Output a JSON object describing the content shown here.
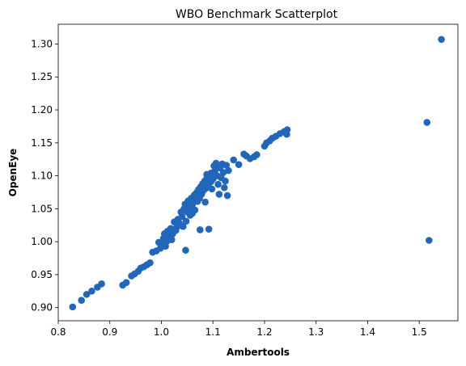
{
  "chart_data": {
    "type": "scatter",
    "title": "WBO Benchmark Scatterplot",
    "xlabel": "Ambertools",
    "ylabel": "OpenEye",
    "xlim": [
      0.8,
      1.575
    ],
    "ylim": [
      0.88,
      1.33
    ],
    "xticks": [
      0.8,
      0.9,
      1.0,
      1.1,
      1.2,
      1.3,
      1.4,
      1.5
    ],
    "xtick_labels": [
      "0.8",
      "0.9",
      "1.0",
      "1.1",
      "1.2",
      "1.3",
      "1.4",
      "1.5"
    ],
    "yticks": [
      0.9,
      0.95,
      1.0,
      1.05,
      1.1,
      1.15,
      1.2,
      1.25,
      1.3
    ],
    "ytick_labels": [
      "0.90",
      "0.95",
      "1.00",
      "1.05",
      "1.10",
      "1.15",
      "1.20",
      "1.25",
      "1.30"
    ],
    "grid": false,
    "marker_color": "#2166b8",
    "points": [
      [
        0.828,
        0.901
      ],
      [
        0.845,
        0.911
      ],
      [
        0.855,
        0.92
      ],
      [
        0.865,
        0.925
      ],
      [
        0.876,
        0.931
      ],
      [
        0.884,
        0.936
      ],
      [
        0.925,
        0.934
      ],
      [
        0.932,
        0.938
      ],
      [
        0.942,
        0.948
      ],
      [
        0.948,
        0.951
      ],
      [
        0.955,
        0.955
      ],
      [
        0.96,
        0.96
      ],
      [
        0.966,
        0.962
      ],
      [
        0.972,
        0.965
      ],
      [
        0.978,
        0.968
      ],
      [
        0.983,
        0.984
      ],
      [
        0.99,
        0.986
      ],
      [
        0.995,
        0.999
      ],
      [
        0.998,
        0.99
      ],
      [
        1.002,
        0.995
      ],
      [
        1.004,
        1.005
      ],
      [
        1.006,
        1.012
      ],
      [
        1.008,
        0.993
      ],
      [
        1.01,
        1.0
      ],
      [
        1.012,
        1.016
      ],
      [
        1.015,
        1.008
      ],
      [
        1.018,
        1.02
      ],
      [
        1.02,
        1.003
      ],
      [
        1.022,
        1.012
      ],
      [
        1.025,
        1.03
      ],
      [
        1.028,
        1.017
      ],
      [
        1.03,
        1.022
      ],
      [
        1.032,
        1.034
      ],
      [
        1.035,
        1.028
      ],
      [
        1.038,
        1.045
      ],
      [
        1.04,
        1.038
      ],
      [
        1.042,
        1.023
      ],
      [
        1.044,
        1.05
      ],
      [
        1.046,
        1.057
      ],
      [
        1.048,
        1.031
      ],
      [
        1.05,
        1.045
      ],
      [
        1.052,
        1.062
      ],
      [
        1.054,
        1.052
      ],
      [
        1.056,
        1.04
      ],
      [
        1.058,
        1.066
      ],
      [
        1.06,
        1.056
      ],
      [
        1.062,
        1.06
      ],
      [
        1.064,
        1.071
      ],
      [
        1.065,
        1.048
      ],
      [
        1.067,
        1.068
      ],
      [
        1.069,
        1.075
      ],
      [
        1.07,
        1.061
      ],
      [
        1.072,
        1.079
      ],
      [
        1.074,
        1.066
      ],
      [
        1.076,
        1.083
      ],
      [
        1.078,
        1.072
      ],
      [
        1.08,
        1.088
      ],
      [
        1.082,
        1.078
      ],
      [
        1.084,
        1.092
      ],
      [
        1.086,
        1.081
      ],
      [
        1.088,
        1.096
      ],
      [
        1.09,
        1.085
      ],
      [
        1.092,
        1.1
      ],
      [
        1.094,
        1.09
      ],
      [
        1.096,
        1.104
      ],
      [
        1.098,
        1.08
      ],
      [
        1.1,
        1.095
      ],
      [
        1.102,
        1.115
      ],
      [
        1.104,
        1.108
      ],
      [
        1.106,
        1.119
      ],
      [
        1.108,
        1.1
      ],
      [
        1.11,
        1.087
      ],
      [
        1.112,
        1.072
      ],
      [
        1.114,
        1.112
      ],
      [
        1.116,
        1.097
      ],
      [
        1.118,
        1.118
      ],
      [
        1.12,
        1.105
      ],
      [
        1.122,
        1.082
      ],
      [
        1.124,
        1.092
      ],
      [
        1.126,
        1.116
      ],
      [
        1.128,
        1.07
      ],
      [
        1.13,
        1.108
      ],
      [
        1.14,
        1.124
      ],
      [
        1.15,
        1.117
      ],
      [
        1.16,
        1.133
      ],
      [
        1.165,
        1.13
      ],
      [
        1.172,
        1.126
      ],
      [
        1.18,
        1.129
      ],
      [
        1.185,
        1.132
      ],
      [
        1.2,
        1.145
      ],
      [
        1.204,
        1.15
      ],
      [
        1.21,
        1.153
      ],
      [
        1.215,
        1.157
      ],
      [
        1.222,
        1.16
      ],
      [
        1.23,
        1.164
      ],
      [
        1.238,
        1.167
      ],
      [
        1.244,
        1.17
      ],
      [
        1.243,
        1.163
      ],
      [
        1.075,
        1.018
      ],
      [
        1.092,
        1.019
      ],
      [
        1.047,
        0.987
      ],
      [
        1.096,
        1.091
      ],
      [
        1.088,
        1.102
      ],
      [
        1.06,
        1.043
      ],
      [
        1.085,
        1.06
      ],
      [
        1.515,
        1.181
      ],
      [
        1.519,
        1.002
      ],
      [
        1.543,
        1.307
      ]
    ]
  }
}
